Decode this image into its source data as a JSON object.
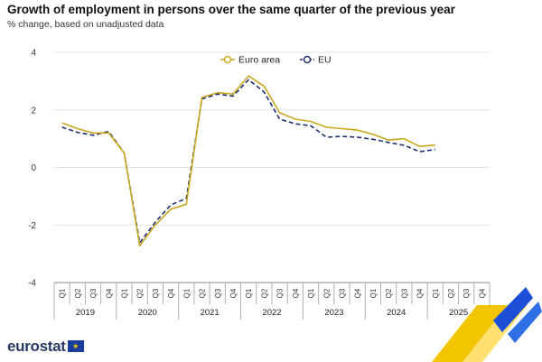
{
  "header": {
    "title": "Growth of employment in persons over the same quarter of the previous year",
    "subtitle": "% change, based on unadjusted data"
  },
  "brand": {
    "name": "eurostat",
    "flag_icon": "eu-flag-icon"
  },
  "colors": {
    "euro_area": "#c9a820",
    "eu": "#1f2f6e",
    "grid": "#e3e3e3",
    "axis": "#8a8a8a"
  },
  "chart_data": {
    "type": "line",
    "title": "Growth of employment in persons over the same quarter of the previous year",
    "subtitle": "% change, based on unadjusted data",
    "ylim": [
      -4,
      4
    ],
    "yticks": [
      -4,
      -2,
      0,
      2,
      4
    ],
    "quarters": [
      "Q1",
      "Q2",
      "Q3",
      "Q4"
    ],
    "years": [
      "2019",
      "2020",
      "2021",
      "2022",
      "2023",
      "2024",
      "2025"
    ],
    "categories": [
      "2019-Q1",
      "2019-Q2",
      "2019-Q3",
      "2019-Q4",
      "2020-Q1",
      "2020-Q2",
      "2020-Q3",
      "2020-Q4",
      "2021-Q1",
      "2021-Q2",
      "2021-Q3",
      "2021-Q4",
      "2022-Q1",
      "2022-Q2",
      "2022-Q3",
      "2022-Q4",
      "2023-Q1",
      "2023-Q2",
      "2023-Q3",
      "2023-Q4",
      "2024-Q1",
      "2024-Q2",
      "2024-Q3",
      "2024-Q4",
      "2025-Q1",
      "2025-Q2",
      "2025-Q3",
      "2025-Q4"
    ],
    "grid": true,
    "legend_position": "top-center",
    "series": [
      {
        "name": "Euro area",
        "style": "solid",
        "color": "#c9a820",
        "values": [
          1.55,
          1.35,
          1.2,
          1.2,
          0.5,
          -2.72,
          -2.0,
          -1.45,
          -1.28,
          2.43,
          2.6,
          2.55,
          3.18,
          2.82,
          1.9,
          1.68,
          1.6,
          1.4,
          1.35,
          1.3,
          1.15,
          0.95,
          1.0,
          0.73,
          0.78,
          null,
          null,
          null
        ]
      },
      {
        "name": "EU",
        "style": "dashed",
        "color": "#1f2f6e",
        "values": [
          1.4,
          1.22,
          1.12,
          1.25,
          0.5,
          -2.62,
          -1.9,
          -1.3,
          -1.08,
          2.38,
          2.55,
          2.48,
          3.05,
          2.62,
          1.68,
          1.52,
          1.45,
          1.05,
          1.08,
          1.05,
          0.98,
          0.87,
          0.77,
          0.55,
          0.62,
          null,
          null,
          null
        ]
      }
    ]
  }
}
